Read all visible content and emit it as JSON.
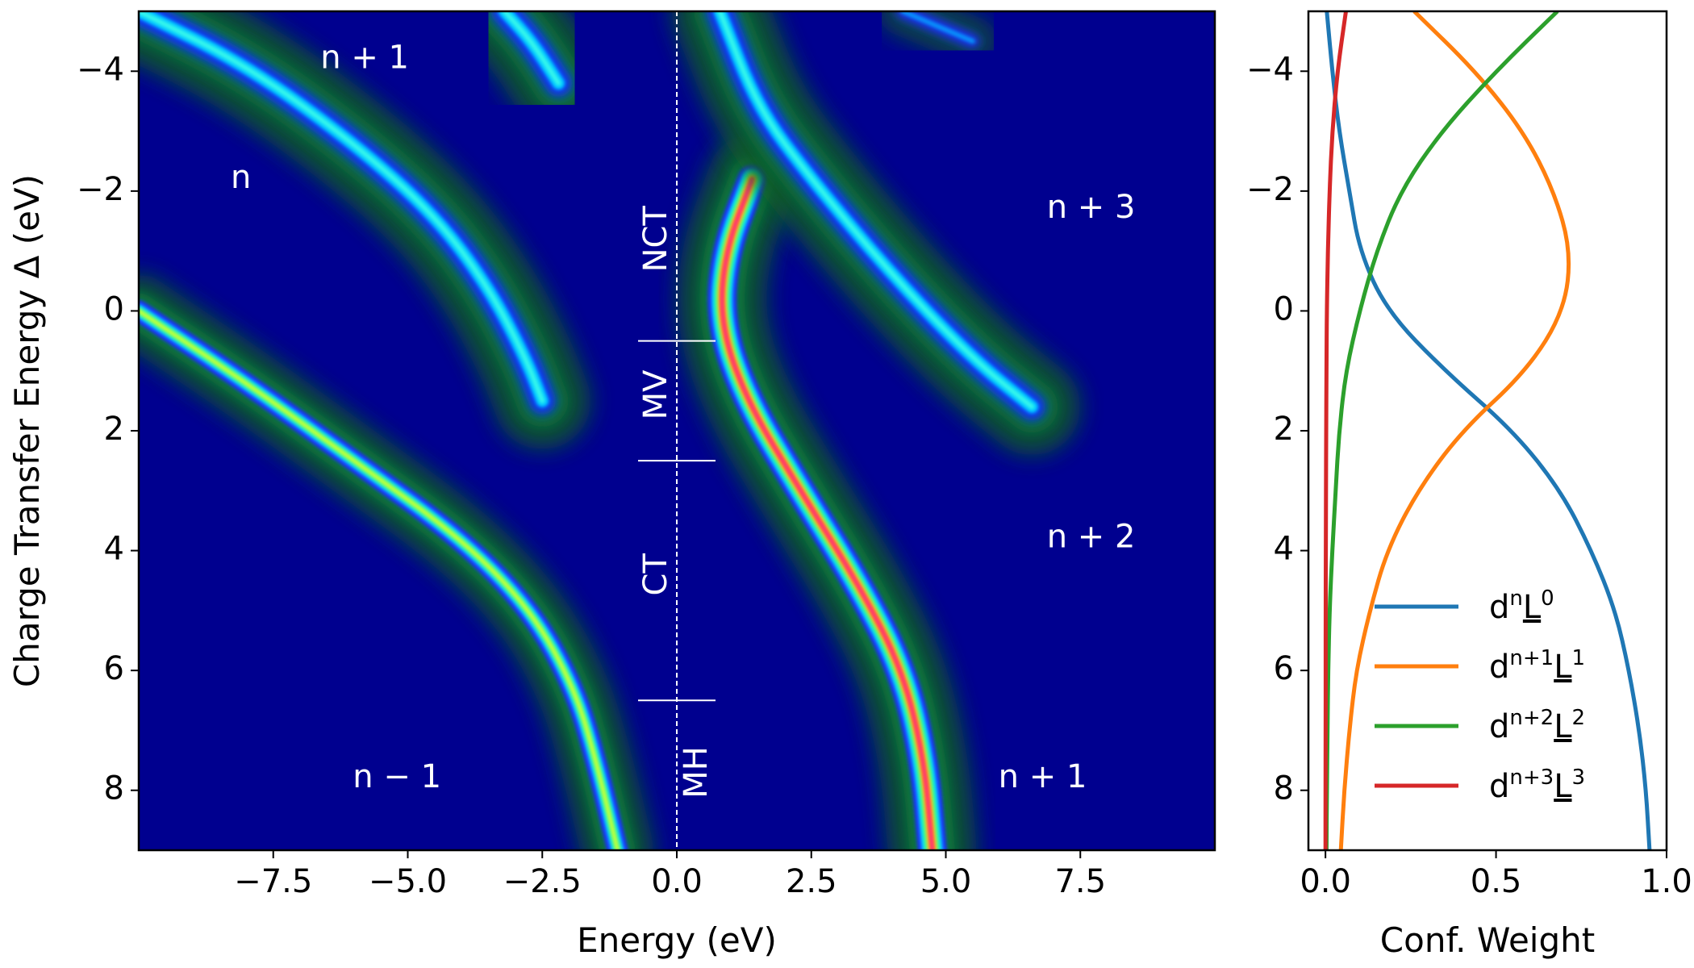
{
  "colors": {
    "background": "#00008f",
    "band_green": "#0b5e23",
    "band_teal": "#0a3f3a",
    "line_blue": "#1f77b4",
    "line_orange": "#ff7f0e",
    "line_green": "#2ca02c",
    "line_red": "#d62728"
  },
  "chart_data": [
    {
      "type": "heatmap",
      "title": "",
      "xlabel": "Energy (eV)",
      "ylabel": "Charge Transfer Energy Δ (eV)",
      "xlim": [
        -10,
        10
      ],
      "ylim": [
        9,
        -5
      ],
      "xticks": [
        -7.5,
        -5.0,
        -2.5,
        0.0,
        2.5,
        5.0,
        7.5
      ],
      "xtick_labels": [
        "−7.5",
        "−5.0",
        "−2.5",
        "0.0",
        "2.5",
        "5.0",
        "7.5"
      ],
      "yticks": [
        -4,
        -2,
        0,
        2,
        4,
        6,
        8
      ],
      "ytick_labels": [
        "−4",
        "−2",
        "0",
        "2",
        "4",
        "6",
        "8"
      ],
      "annotations": [
        {
          "text": "n + 1",
          "x": -5.8,
          "y": -4.2
        },
        {
          "text": "n",
          "x": -8.1,
          "y": -2.2
        },
        {
          "text": "n + 3",
          "x": 7.7,
          "y": -1.7
        },
        {
          "text": "n + 2",
          "x": 7.7,
          "y": 3.8
        },
        {
          "text": "n − 1",
          "x": -5.2,
          "y": 7.8
        },
        {
          "text": "n + 1",
          "x": 6.8,
          "y": 7.8
        }
      ],
      "regions": [
        {
          "label": "NCT",
          "y_from": -5.0,
          "y_to": 0.5
        },
        {
          "label": "MV",
          "y_from": 0.5,
          "y_to": 2.5
        },
        {
          "label": "CT",
          "y_from": 2.5,
          "y_to": 6.5
        },
        {
          "label": "MH",
          "y_from": 6.5,
          "y_to": 9.0
        }
      ],
      "region_boundaries": [
        0.5,
        2.5,
        6.5
      ],
      "zero_line_x": 0.0,
      "bands": [
        {
          "name": "n+1 upper-left",
          "x": [
            -10,
            -8.0,
            -6.0,
            -4.5,
            -3.5,
            -2.8,
            -2.5
          ],
          "y": [
            -5,
            -4.1,
            -2.8,
            -1.6,
            -0.4,
            0.8,
            1.5
          ],
          "intensity": "cyan"
        },
        {
          "name": "n+1 top peak",
          "x": [
            -3.2,
            -2.7,
            -2.2
          ],
          "y": [
            -5,
            -4.5,
            -3.8
          ],
          "intensity": "cyan"
        },
        {
          "name": "n-1 lower-left",
          "x": [
            -10,
            -8.0,
            -6.0,
            -4.0,
            -2.7,
            -1.9,
            -1.5,
            -1.1
          ],
          "y": [
            0,
            1.2,
            2.5,
            3.8,
            5.0,
            6.3,
            7.5,
            9
          ],
          "intensity": "yellow"
        },
        {
          "name": "central n+1",
          "x": [
            1.4,
            0.9,
            0.8,
            1.3,
            2.3,
            3.4,
            4.2,
            4.6,
            4.75
          ],
          "y": [
            -2.2,
            -1.0,
            0.2,
            1.5,
            3.0,
            4.6,
            6.0,
            7.5,
            9
          ],
          "intensity": "red"
        },
        {
          "name": "n+3 upper",
          "x": [
            0.8,
            1.5,
            2.5,
            4.0,
            5.5,
            6.6
          ],
          "y": [
            -5,
            -3.4,
            -2.2,
            -0.6,
            0.8,
            1.6
          ],
          "intensity": "cyan"
        },
        {
          "name": "n+2 faint",
          "x": [
            4.2,
            5.5
          ],
          "y": [
            -5,
            -4.5
          ],
          "intensity": "blue"
        }
      ]
    },
    {
      "type": "line",
      "title": "",
      "xlabel": "Conf. Weight",
      "ylabel": "",
      "xlim": [
        -0.05,
        1.0
      ],
      "ylim": [
        9,
        -5
      ],
      "xticks": [
        0.0,
        0.5,
        1.0
      ],
      "xtick_labels": [
        "0.0",
        "0.5",
        "1.0"
      ],
      "yticks": [
        -4,
        -2,
        0,
        2,
        4,
        6,
        8
      ],
      "ytick_labels": [
        "−4",
        "−2",
        "0",
        "2",
        "4",
        "6",
        "8"
      ],
      "legend_position": "lower-right",
      "y": [
        -5,
        -4,
        -3,
        -2,
        -1,
        0,
        1,
        2,
        3,
        4,
        5,
        6,
        7,
        8,
        9
      ],
      "series": [
        {
          "name": "d^n L^0",
          "label_base": "d",
          "label_sup1": "n",
          "label_L": "L",
          "label_sup2": "0",
          "color": "#1f77b4",
          "values": [
            0.004,
            0.02,
            0.04,
            0.07,
            0.1,
            0.18,
            0.35,
            0.55,
            0.69,
            0.78,
            0.85,
            0.89,
            0.92,
            0.94,
            0.95
          ]
        },
        {
          "name": "d^{n+1} L^1",
          "label_base": "d",
          "label_sup1": "n+1",
          "label_L": "L",
          "label_sup2": "1",
          "color": "#ff7f0e",
          "values": [
            0.26,
            0.44,
            0.58,
            0.67,
            0.72,
            0.7,
            0.59,
            0.4,
            0.27,
            0.18,
            0.13,
            0.09,
            0.07,
            0.055,
            0.045
          ]
        },
        {
          "name": "d^{n+2} L^2",
          "label_base": "d",
          "label_sup1": "n+2",
          "label_L": "L",
          "label_sup2": "2",
          "color": "#2ca02c",
          "values": [
            0.68,
            0.5,
            0.34,
            0.22,
            0.15,
            0.1,
            0.06,
            0.04,
            0.03,
            0.02,
            0.012,
            0.008,
            0.006,
            0.004,
            0.003
          ]
        },
        {
          "name": "d^{n+3} L^3",
          "label_base": "d",
          "label_sup1": "n+3",
          "label_L": "L",
          "label_sup2": "3",
          "color": "#d62728",
          "values": [
            0.06,
            0.035,
            0.02,
            0.012,
            0.007,
            0.004,
            0.003,
            0.002,
            0.0015,
            0.001,
            0.0008,
            0.0006,
            0.0004,
            0.0003,
            0.0002
          ]
        }
      ]
    }
  ]
}
